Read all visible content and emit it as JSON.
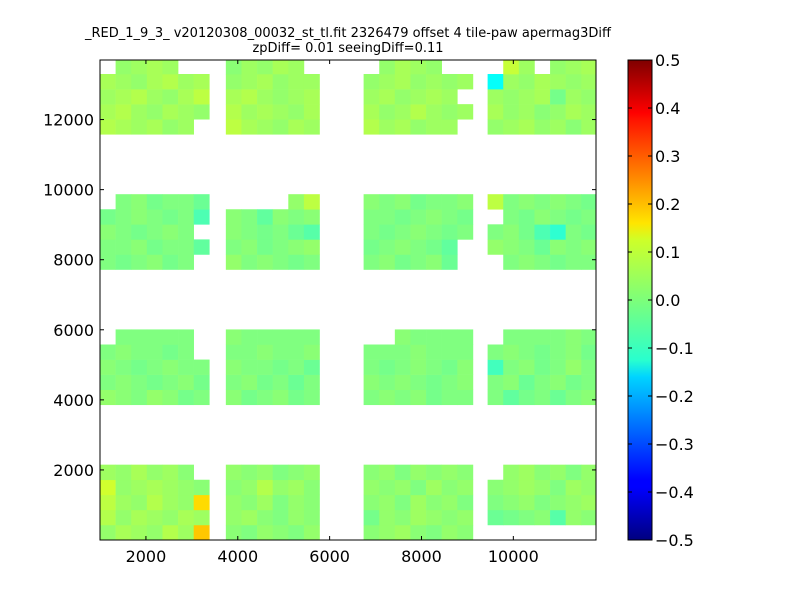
{
  "chart_data": {
    "type": "heatmap",
    "title_line1": "_RED_1_9_3_ v20120308_00032_st_tl.fit 2326479 offset 4 tile-paw apermag3Diff",
    "title_line2": "zpDiff= 0.01 seeingDiff=0.11",
    "xlabel": "",
    "ylabel": "",
    "xlim": [
      1000,
      11800
    ],
    "ylim": [
      0,
      13700
    ],
    "x_ticks": [
      2000,
      4000,
      6000,
      8000,
      10000
    ],
    "y_ticks": [
      2000,
      4000,
      6000,
      8000,
      10000,
      12000
    ],
    "colorbar": {
      "colormap": "jet",
      "range": [
        -0.5,
        0.5
      ],
      "ticks": [
        0.5,
        0.4,
        0.3,
        0.2,
        0.1,
        0.0,
        -0.1,
        -0.2,
        -0.3,
        -0.4,
        -0.5
      ],
      "tick_labels": [
        "0.5",
        "0.4",
        "0.3",
        "0.2",
        "0.1",
        "0.0",
        "−0.1",
        "−0.2",
        "−0.3",
        "−0.4",
        "−0.5"
      ]
    },
    "cell_size": [
      340,
      430
    ],
    "columns": [
      1000,
      1340,
      1680,
      2020,
      2360,
      2700,
      3040,
      3740,
      4080,
      4420,
      4760,
      5100,
      5440,
      6740,
      7080,
      7420,
      7760,
      8100,
      8440,
      8780,
      9440,
      9780,
      10120,
      10460,
      10800,
      11140,
      11480
    ],
    "rows": [
      0,
      430,
      860,
      1290,
      1720,
      3860,
      4290,
      4720,
      5150,
      5580,
      7720,
      8150,
      8580,
      9010,
      9440,
      11580,
      12010,
      12440,
      12870,
      13300
    ],
    "values": [
      [
        0.02,
        0.04,
        0.03,
        0.02,
        0.05,
        0.03,
        0.18,
        0.01,
        0.0,
        0.02,
        0.01,
        0.0,
        0.02,
        0.01,
        0.02,
        0.03,
        0.01,
        0.0,
        0.02,
        0.01,
        null,
        null,
        null,
        null,
        null,
        null,
        null
      ],
      [
        0.05,
        0.02,
        0.04,
        0.03,
        0.02,
        0.04,
        0.03,
        0.02,
        0.03,
        0.01,
        0.0,
        0.02,
        0.01,
        -0.01,
        0.02,
        0.01,
        0.03,
        0.02,
        0.01,
        0.02,
        -0.02,
        -0.01,
        0.0,
        0.01,
        -0.04,
        0.02,
        0.01
      ],
      [
        0.06,
        0.03,
        0.02,
        0.05,
        0.03,
        0.02,
        0.16,
        0.02,
        0.01,
        0.03,
        0.0,
        0.02,
        0.01,
        0.01,
        0.02,
        0.0,
        0.03,
        0.01,
        0.02,
        0.0,
        0.0,
        0.01,
        0.02,
        0.0,
        0.01,
        0.02,
        0.03
      ],
      [
        0.08,
        0.02,
        0.03,
        0.04,
        0.03,
        0.02,
        0.01,
        0.01,
        0.02,
        0.05,
        0.02,
        0.03,
        0.01,
        0.02,
        0.01,
        0.02,
        0.0,
        0.03,
        0.01,
        0.02,
        0.01,
        0.02,
        0.03,
        0.02,
        0.0,
        0.03,
        0.02
      ],
      [
        0.03,
        0.02,
        0.04,
        0.02,
        0.03,
        0.01,
        null,
        0.02,
        0.01,
        0.02,
        0.0,
        0.01,
        0.02,
        0.01,
        0.02,
        0.0,
        0.02,
        0.01,
        0.02,
        0.01,
        null,
        0.02,
        0.03,
        0.01,
        0.02,
        0.0,
        0.02
      ],
      [
        0.02,
        0.01,
        0.0,
        0.02,
        0.01,
        -0.01,
        0.0,
        0.01,
        -0.01,
        0.0,
        0.01,
        -0.01,
        0.0,
        0.0,
        0.01,
        0.0,
        0.01,
        -0.01,
        0.0,
        0.0,
        0.0,
        -0.03,
        -0.01,
        0.0,
        -0.02,
        0.0,
        0.01
      ],
      [
        0.0,
        0.01,
        0.0,
        -0.01,
        0.0,
        0.01,
        -0.01,
        0.0,
        0.01,
        -0.01,
        0.0,
        -0.02,
        0.0,
        0.01,
        0.0,
        0.01,
        0.0,
        -0.01,
        0.0,
        0.01,
        0.0,
        0.01,
        -0.02,
        0.0,
        0.01,
        -0.01,
        0.0
      ],
      [
        0.01,
        0.0,
        -0.01,
        0.0,
        0.01,
        0.0,
        0.0,
        0.01,
        0.0,
        0.0,
        -0.01,
        0.0,
        -0.02,
        0.0,
        -0.01,
        0.0,
        0.01,
        0.0,
        -0.01,
        0.01,
        -0.06,
        0.0,
        0.01,
        -0.01,
        0.0,
        0.02,
        0.0
      ],
      [
        0.0,
        0.01,
        0.0,
        0.0,
        -0.01,
        0.0,
        null,
        0.0,
        0.0,
        0.01,
        0.0,
        0.0,
        0.01,
        0.0,
        0.0,
        0.0,
        0.01,
        0.0,
        0.0,
        0.0,
        0.0,
        0.01,
        0.0,
        -0.01,
        0.0,
        0.01,
        -0.01
      ],
      [
        null,
        0.0,
        0.0,
        0.0,
        0.0,
        0.0,
        null,
        0.01,
        0.0,
        0.0,
        0.0,
        0.0,
        0.0,
        null,
        null,
        0.01,
        0.0,
        0.0,
        0.0,
        0.0,
        null,
        0.0,
        0.0,
        0.0,
        0.0,
        0.01,
        0.0
      ],
      [
        0.0,
        -0.01,
        0.0,
        0.01,
        -0.01,
        0.0,
        null,
        0.02,
        0.0,
        0.01,
        0.0,
        -0.01,
        0.0,
        0.0,
        0.01,
        -0.01,
        0.0,
        0.01,
        -0.02,
        null,
        null,
        0.0,
        0.01,
        0.0,
        -0.01,
        0.0,
        0.0
      ],
      [
        0.0,
        0.0,
        0.01,
        -0.01,
        0.0,
        0.0,
        -0.03,
        0.0,
        0.01,
        -0.01,
        0.0,
        0.01,
        0.02,
        -0.01,
        0.0,
        0.01,
        0.0,
        -0.01,
        -0.03,
        null,
        0.02,
        0.01,
        0.0,
        -0.02,
        0.01,
        0.0,
        0.01
      ],
      [
        0.01,
        0.0,
        -0.01,
        0.0,
        0.01,
        0.0,
        null,
        0.01,
        0.0,
        -0.01,
        0.0,
        -0.02,
        -0.04,
        0.0,
        -0.01,
        0.0,
        0.01,
        0.0,
        -0.01,
        0.0,
        0.0,
        0.01,
        -0.01,
        -0.05,
        -0.08,
        0.0,
        -0.01
      ],
      [
        -0.01,
        0.0,
        0.01,
        0.0,
        -0.01,
        0.0,
        -0.05,
        0.01,
        0.0,
        -0.03,
        0.01,
        0.0,
        0.01,
        0.0,
        0.0,
        -0.01,
        0.0,
        0.01,
        0.0,
        -0.01,
        null,
        0.0,
        -0.01,
        0.01,
        0.0,
        -0.01,
        0.0
      ],
      [
        null,
        0.0,
        0.01,
        -0.01,
        0.0,
        0.0,
        -0.02,
        null,
        null,
        null,
        null,
        0.02,
        0.06,
        0.01,
        0.0,
        0.01,
        -0.01,
        0.0,
        0.0,
        0.01,
        0.06,
        0.0,
        0.01,
        0.0,
        0.01,
        0.0,
        -0.01
      ],
      [
        0.05,
        0.04,
        0.03,
        0.04,
        0.02,
        0.03,
        null,
        0.06,
        0.04,
        0.03,
        0.02,
        0.04,
        0.03,
        0.05,
        0.03,
        0.04,
        0.02,
        0.03,
        0.03,
        null,
        0.02,
        0.03,
        0.04,
        0.02,
        0.03,
        0.01,
        0.03
      ],
      [
        0.04,
        0.05,
        0.03,
        0.02,
        0.04,
        0.03,
        0.02,
        0.05,
        0.03,
        0.04,
        0.03,
        0.02,
        0.04,
        0.04,
        0.02,
        0.03,
        0.05,
        0.03,
        0.02,
        0.03,
        0.04,
        0.02,
        0.03,
        0.01,
        0.02,
        0.04,
        0.03
      ],
      [
        0.03,
        0.04,
        0.05,
        0.03,
        0.02,
        0.04,
        0.06,
        0.04,
        0.05,
        0.03,
        0.02,
        0.03,
        0.04,
        0.03,
        0.04,
        0.02,
        0.03,
        0.04,
        0.03,
        null,
        0.03,
        0.02,
        0.03,
        0.04,
        -0.01,
        0.03,
        0.02
      ],
      [
        0.04,
        0.03,
        0.02,
        0.04,
        0.05,
        0.03,
        0.04,
        0.02,
        0.03,
        0.04,
        0.02,
        0.03,
        0.03,
        0.02,
        0.03,
        0.04,
        0.02,
        0.03,
        0.02,
        0.03,
        -0.12,
        0.03,
        0.02,
        0.04,
        0.03,
        0.02,
        0.03
      ],
      [
        null,
        0.02,
        0.03,
        0.04,
        0.03,
        null,
        null,
        0.01,
        0.03,
        0.02,
        0.04,
        0.03,
        null,
        null,
        0.02,
        0.04,
        0.03,
        0.02,
        null,
        null,
        null,
        0.07,
        0.03,
        null,
        0.02,
        0.03,
        0.04
      ]
    ]
  }
}
